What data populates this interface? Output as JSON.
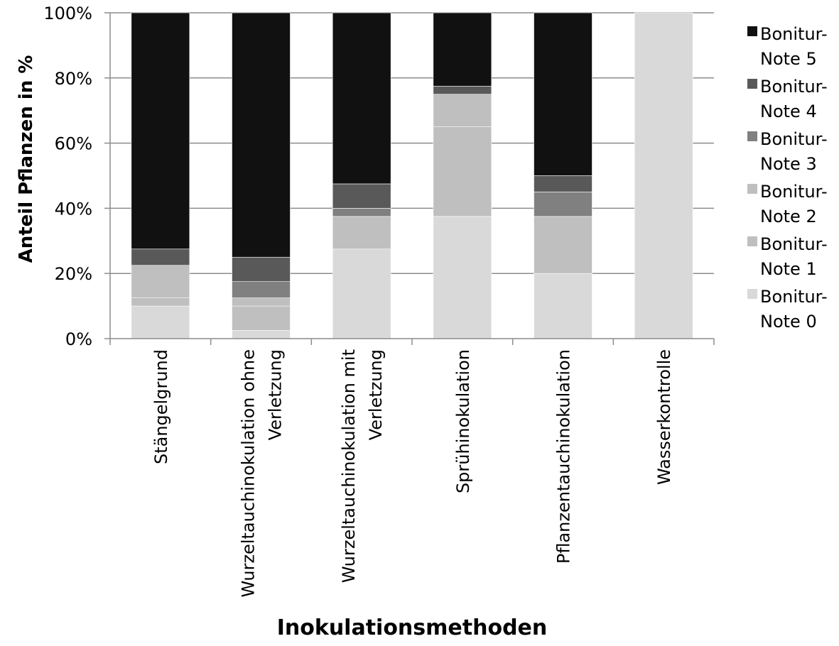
{
  "chart_data": {
    "type": "bar",
    "stacked": true,
    "percent": true,
    "xlabel": "Inokulationsmethoden",
    "ylabel": "Anteil  Pflanzen in %",
    "ylim": [
      0,
      100
    ],
    "yticks": [
      "0%",
      "20%",
      "40%",
      "60%",
      "80%",
      "100%"
    ],
    "grid": true,
    "legend_position": "right",
    "categories": [
      [
        "Stängelgrund"
      ],
      [
        "Wurzeltauchinokulation ohne",
        "Verletzung"
      ],
      [
        "Wurzeltauchinokulation mit",
        "Verletzung"
      ],
      [
        "Sprühinokulation"
      ],
      [
        "Pflanzentauchinokulation"
      ],
      [
        "Wasserkontrolle"
      ]
    ],
    "series": [
      {
        "name": [
          "Bonitur-",
          "Note 0"
        ],
        "color": "#d9d9d9",
        "values": [
          10,
          2.5,
          27.5,
          37.5,
          20,
          100
        ]
      },
      {
        "name": [
          "Bonitur-",
          "Note 1"
        ],
        "color": "#bfbfbf",
        "values": [
          2.5,
          7.5,
          0,
          27.5,
          0,
          0
        ]
      },
      {
        "name": [
          "Bonitur-",
          "Note 2"
        ],
        "color": "#bfbfbf",
        "values": [
          10,
          2.5,
          10,
          10,
          17.5,
          0
        ]
      },
      {
        "name": [
          "Bonitur-",
          "Note 3"
        ],
        "color": "#808080",
        "values": [
          0,
          5,
          2.5,
          0,
          7.5,
          0
        ]
      },
      {
        "name": [
          "Bonitur-",
          "Note 4"
        ],
        "color": "#595959",
        "values": [
          5,
          7.5,
          7.5,
          2.5,
          5,
          0
        ]
      },
      {
        "name": [
          "Bonitur-",
          "Note 5"
        ],
        "color": "#111111",
        "values": [
          72.5,
          75,
          52.5,
          22.5,
          50,
          0
        ]
      }
    ]
  }
}
